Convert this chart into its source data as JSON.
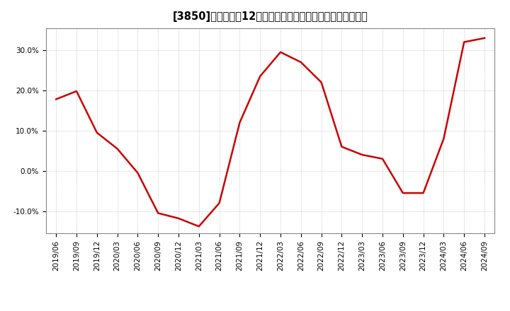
{
  "title": "[3850]　売上高の12か月移動合計の対前年同期増減率の推移",
  "x_labels": [
    "2019/06",
    "2019/09",
    "2019/12",
    "2020/03",
    "2020/06",
    "2020/09",
    "2020/12",
    "2021/03",
    "2021/06",
    "2021/09",
    "2021/12",
    "2022/03",
    "2022/06",
    "2022/09",
    "2022/12",
    "2023/03",
    "2023/06",
    "2023/09",
    "2023/12",
    "2024/03",
    "2024/06",
    "2024/09"
  ],
  "y_values": [
    0.178,
    0.198,
    0.095,
    0.055,
    -0.005,
    -0.105,
    -0.118,
    -0.138,
    -0.08,
    0.12,
    0.235,
    0.295,
    0.27,
    0.22,
    0.06,
    0.04,
    0.03,
    -0.055,
    -0.055,
    0.08,
    0.32,
    0.33
  ],
  "line_color": "#cc0000",
  "background_color": "#ffffff",
  "plot_bg_color": "#ffffff",
  "grid_color": "#aaaaaa",
  "ylim": [
    -0.155,
    0.355
  ],
  "yticks": [
    -0.1,
    0.0,
    0.1,
    0.2,
    0.3
  ],
  "ytick_labels": [
    "-10.0%",
    "0.0%",
    "10.0%",
    "20.0%",
    "30.0%"
  ],
  "title_fontsize": 10.5,
  "tick_fontsize": 7.5,
  "line_width": 1.8
}
